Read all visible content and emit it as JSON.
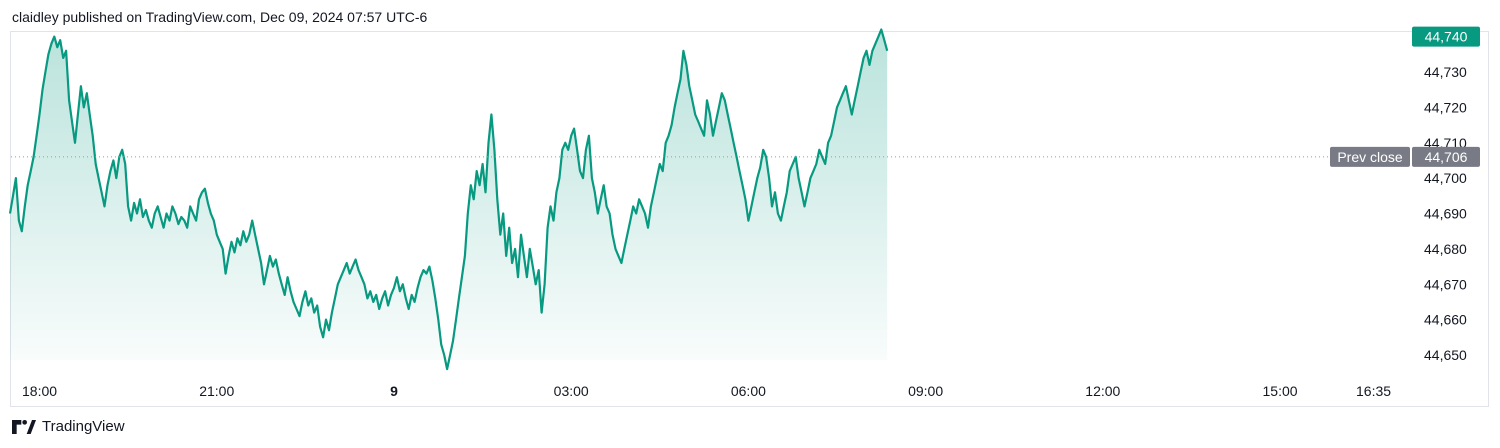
{
  "header": {
    "publish_line": "claidley published on TradingView.com, Dec 09, 2024 07:57 UTC-6"
  },
  "footer": {
    "brand": "TradingView",
    "logo_icon": "tradingview-logo-icon"
  },
  "colors": {
    "line": "#089981",
    "fill_top": "#089981",
    "prev_close_label_bg": "#787b86",
    "last_price_bg": "#089981",
    "grid_dots": "#9598a1"
  },
  "chart_data": {
    "type": "area",
    "title": "",
    "xlabel": "",
    "ylabel": "",
    "x_unit": "hours since 18:00 (Dec 8)",
    "x_ticks": [
      {
        "label": "18:00",
        "t": 0
      },
      {
        "label": "21:00",
        "t": 3
      },
      {
        "label": "9",
        "t": 6,
        "bold": true
      },
      {
        "label": "03:00",
        "t": 9
      },
      {
        "label": "06:00",
        "t": 12
      },
      {
        "label": "09:00",
        "t": 15
      },
      {
        "label": "12:00",
        "t": 18
      },
      {
        "label": "15:00",
        "t": 21
      },
      {
        "label": "16:35",
        "t": 22.583
      }
    ],
    "y_ticks": [
      44650,
      44660,
      44670,
      44680,
      44690,
      44700,
      44710,
      44720,
      44730
    ],
    "ylim": [
      44645,
      44742
    ],
    "xlim": [
      -0.5,
      23.2
    ],
    "prev_close": {
      "label": "Prev close",
      "value": 44706,
      "value_label": "44,706"
    },
    "last_price": {
      "value": 44740,
      "value_label": "44,740"
    },
    "series": [
      {
        "points": [
          [
            -0.5,
            44690
          ],
          [
            -0.45,
            44695
          ],
          [
            -0.4,
            44700
          ],
          [
            -0.35,
            44688
          ],
          [
            -0.3,
            44685
          ],
          [
            -0.25,
            44692
          ],
          [
            -0.2,
            44698
          ],
          [
            -0.15,
            44702
          ],
          [
            -0.1,
            44706
          ],
          [
            -0.05,
            44712
          ],
          [
            0.0,
            44718
          ],
          [
            0.05,
            44725
          ],
          [
            0.1,
            44730
          ],
          [
            0.15,
            44735
          ],
          [
            0.2,
            44738
          ],
          [
            0.25,
            44740
          ],
          [
            0.3,
            44737
          ],
          [
            0.35,
            44739
          ],
          [
            0.4,
            44734
          ],
          [
            0.45,
            44736
          ],
          [
            0.5,
            44722
          ],
          [
            0.55,
            44716
          ],
          [
            0.6,
            44710
          ],
          [
            0.65,
            44718
          ],
          [
            0.7,
            44726
          ],
          [
            0.75,
            44720
          ],
          [
            0.8,
            44724
          ],
          [
            0.85,
            44718
          ],
          [
            0.9,
            44712
          ],
          [
            0.95,
            44704
          ],
          [
            1.0,
            44700
          ],
          [
            1.05,
            44696
          ],
          [
            1.1,
            44692
          ],
          [
            1.15,
            44698
          ],
          [
            1.2,
            44702
          ],
          [
            1.25,
            44705
          ],
          [
            1.3,
            44700
          ],
          [
            1.35,
            44706
          ],
          [
            1.4,
            44708
          ],
          [
            1.45,
            44704
          ],
          [
            1.5,
            44692
          ],
          [
            1.55,
            44688
          ],
          [
            1.6,
            44693
          ],
          [
            1.65,
            44690
          ],
          [
            1.7,
            44694
          ],
          [
            1.75,
            44689
          ],
          [
            1.8,
            44691
          ],
          [
            1.85,
            44688
          ],
          [
            1.9,
            44686
          ],
          [
            1.95,
            44690
          ],
          [
            2.0,
            44692
          ],
          [
            2.05,
            44689
          ],
          [
            2.1,
            44686
          ],
          [
            2.15,
            44690
          ],
          [
            2.2,
            44688
          ],
          [
            2.25,
            44692
          ],
          [
            2.3,
            44690
          ],
          [
            2.35,
            44687
          ],
          [
            2.4,
            44689
          ],
          [
            2.45,
            44688
          ],
          [
            2.5,
            44686
          ],
          [
            2.55,
            44692
          ],
          [
            2.6,
            44690
          ],
          [
            2.65,
            44688
          ],
          [
            2.7,
            44694
          ],
          [
            2.75,
            44696
          ],
          [
            2.8,
            44697
          ],
          [
            2.85,
            44693
          ],
          [
            2.9,
            44690
          ],
          [
            2.95,
            44688
          ],
          [
            3.0,
            44684
          ],
          [
            3.05,
            44682
          ],
          [
            3.1,
            44680
          ],
          [
            3.15,
            44673
          ],
          [
            3.2,
            44678
          ],
          [
            3.25,
            44682
          ],
          [
            3.3,
            44679
          ],
          [
            3.35,
            44683
          ],
          [
            3.4,
            44681
          ],
          [
            3.45,
            44685
          ],
          [
            3.5,
            44682
          ],
          [
            3.55,
            44684
          ],
          [
            3.6,
            44688
          ],
          [
            3.65,
            44684
          ],
          [
            3.7,
            44680
          ],
          [
            3.75,
            44676
          ],
          [
            3.8,
            44670
          ],
          [
            3.85,
            44674
          ],
          [
            3.9,
            44678
          ],
          [
            3.95,
            44675
          ],
          [
            4.0,
            44677
          ],
          [
            4.05,
            44673
          ],
          [
            4.1,
            44670
          ],
          [
            4.15,
            44667
          ],
          [
            4.2,
            44672
          ],
          [
            4.25,
            44668
          ],
          [
            4.3,
            44665
          ],
          [
            4.35,
            44663
          ],
          [
            4.4,
            44661
          ],
          [
            4.45,
            44665
          ],
          [
            4.5,
            44668
          ],
          [
            4.55,
            44664
          ],
          [
            4.6,
            44666
          ],
          [
            4.65,
            44662
          ],
          [
            4.7,
            44664
          ],
          [
            4.75,
            44658
          ],
          [
            4.8,
            44655
          ],
          [
            4.85,
            44660
          ],
          [
            4.9,
            44657
          ],
          [
            4.95,
            44662
          ],
          [
            5.0,
            44666
          ],
          [
            5.05,
            44670
          ],
          [
            5.1,
            44672
          ],
          [
            5.15,
            44674
          ],
          [
            5.2,
            44676
          ],
          [
            5.25,
            44673
          ],
          [
            5.3,
            44675
          ],
          [
            5.35,
            44677
          ],
          [
            5.4,
            44674
          ],
          [
            5.45,
            44672
          ],
          [
            5.5,
            44670
          ],
          [
            5.55,
            44666
          ],
          [
            5.6,
            44668
          ],
          [
            5.65,
            44665
          ],
          [
            5.7,
            44667
          ],
          [
            5.75,
            44663
          ],
          [
            5.8,
            44666
          ],
          [
            5.85,
            44668
          ],
          [
            5.9,
            44664
          ],
          [
            5.95,
            44667
          ],
          [
            6.0,
            44669
          ],
          [
            6.05,
            44672
          ],
          [
            6.1,
            44668
          ],
          [
            6.15,
            44670
          ],
          [
            6.2,
            44666
          ],
          [
            6.25,
            44663
          ],
          [
            6.3,
            44667
          ],
          [
            6.35,
            44665
          ],
          [
            6.4,
            44669
          ],
          [
            6.45,
            44672
          ],
          [
            6.5,
            44674
          ],
          [
            6.55,
            44673
          ],
          [
            6.6,
            44675
          ],
          [
            6.65,
            44671
          ],
          [
            6.7,
            44666
          ],
          [
            6.75,
            44660
          ],
          [
            6.8,
            44653
          ],
          [
            6.85,
            44650
          ],
          [
            6.9,
            44646
          ],
          [
            6.95,
            44650
          ],
          [
            7.0,
            44654
          ],
          [
            7.05,
            44660
          ],
          [
            7.1,
            44666
          ],
          [
            7.15,
            44672
          ],
          [
            7.2,
            44678
          ],
          [
            7.25,
            44690
          ],
          [
            7.3,
            44698
          ],
          [
            7.35,
            44694
          ],
          [
            7.4,
            44702
          ],
          [
            7.45,
            44698
          ],
          [
            7.5,
            44704
          ],
          [
            7.55,
            44696
          ],
          [
            7.6,
            44710
          ],
          [
            7.65,
            44718
          ],
          [
            7.7,
            44708
          ],
          [
            7.75,
            44694
          ],
          [
            7.8,
            44684
          ],
          [
            7.85,
            44690
          ],
          [
            7.9,
            44678
          ],
          [
            7.95,
            44686
          ],
          [
            8.0,
            44676
          ],
          [
            8.05,
            44680
          ],
          [
            8.1,
            44672
          ],
          [
            8.15,
            44684
          ],
          [
            8.2,
            44678
          ],
          [
            8.25,
            44672
          ],
          [
            8.3,
            44680
          ],
          [
            8.35,
            44675
          ],
          [
            8.4,
            44670
          ],
          [
            8.45,
            44674
          ],
          [
            8.5,
            44662
          ],
          [
            8.55,
            44670
          ],
          [
            8.6,
            44686
          ],
          [
            8.65,
            44692
          ],
          [
            8.7,
            44688
          ],
          [
            8.75,
            44696
          ],
          [
            8.8,
            44700
          ],
          [
            8.85,
            44708
          ],
          [
            8.9,
            44710
          ],
          [
            8.95,
            44708
          ],
          [
            9.0,
            44712
          ],
          [
            9.05,
            44714
          ],
          [
            9.1,
            44708
          ],
          [
            9.15,
            44702
          ],
          [
            9.2,
            44700
          ],
          [
            9.25,
            44708
          ],
          [
            9.3,
            44712
          ],
          [
            9.35,
            44700
          ],
          [
            9.4,
            44696
          ],
          [
            9.45,
            44690
          ],
          [
            9.5,
            44694
          ],
          [
            9.55,
            44698
          ],
          [
            9.6,
            44692
          ],
          [
            9.65,
            44690
          ],
          [
            9.7,
            44684
          ],
          [
            9.75,
            44680
          ],
          [
            9.8,
            44678
          ],
          [
            9.85,
            44676
          ],
          [
            9.9,
            44680
          ],
          [
            9.95,
            44684
          ],
          [
            10.0,
            44688
          ],
          [
            10.05,
            44692
          ],
          [
            10.1,
            44690
          ],
          [
            10.15,
            44694
          ],
          [
            10.2,
            44692
          ],
          [
            10.25,
            44690
          ],
          [
            10.3,
            44686
          ],
          [
            10.35,
            44692
          ],
          [
            10.4,
            44696
          ],
          [
            10.45,
            44700
          ],
          [
            10.5,
            44704
          ],
          [
            10.55,
            44702
          ],
          [
            10.6,
            44710
          ],
          [
            10.65,
            44712
          ],
          [
            10.7,
            44715
          ],
          [
            10.75,
            44720
          ],
          [
            10.8,
            44724
          ],
          [
            10.85,
            44728
          ],
          [
            10.9,
            44736
          ],
          [
            10.95,
            44732
          ],
          [
            11.0,
            44726
          ],
          [
            11.05,
            44722
          ],
          [
            11.1,
            44718
          ],
          [
            11.15,
            44716
          ],
          [
            11.2,
            44714
          ],
          [
            11.25,
            44712
          ],
          [
            11.3,
            44722
          ],
          [
            11.35,
            44718
          ],
          [
            11.4,
            44712
          ],
          [
            11.45,
            44716
          ],
          [
            11.5,
            44720
          ],
          [
            11.55,
            44724
          ],
          [
            11.6,
            44722
          ],
          [
            11.65,
            44718
          ],
          [
            11.7,
            44714
          ],
          [
            11.75,
            44710
          ],
          [
            11.8,
            44706
          ],
          [
            11.85,
            44702
          ],
          [
            11.9,
            44698
          ],
          [
            11.95,
            44694
          ],
          [
            12.0,
            44688
          ],
          [
            12.05,
            44692
          ],
          [
            12.1,
            44696
          ],
          [
            12.15,
            44700
          ],
          [
            12.2,
            44703
          ],
          [
            12.25,
            44708
          ],
          [
            12.3,
            44706
          ],
          [
            12.35,
            44700
          ],
          [
            12.4,
            44692
          ],
          [
            12.45,
            44696
          ],
          [
            12.5,
            44690
          ],
          [
            12.55,
            44688
          ],
          [
            12.6,
            44692
          ],
          [
            12.65,
            44696
          ],
          [
            12.7,
            44702
          ],
          [
            12.75,
            44704
          ],
          [
            12.8,
            44706
          ],
          [
            12.85,
            44700
          ],
          [
            12.9,
            44696
          ],
          [
            12.95,
            44692
          ],
          [
            13.0,
            44696
          ],
          [
            13.05,
            44700
          ],
          [
            13.1,
            44702
          ],
          [
            13.15,
            44704
          ],
          [
            13.2,
            44708
          ],
          [
            13.25,
            44706
          ],
          [
            13.3,
            44704
          ],
          [
            13.35,
            44710
          ],
          [
            13.4,
            44712
          ],
          [
            13.45,
            44716
          ],
          [
            13.5,
            44720
          ],
          [
            13.55,
            44722
          ],
          [
            13.6,
            44724
          ],
          [
            13.65,
            44726
          ],
          [
            13.7,
            44722
          ],
          [
            13.75,
            44718
          ],
          [
            13.8,
            44722
          ],
          [
            13.85,
            44726
          ],
          [
            13.9,
            44730
          ],
          [
            13.95,
            44734
          ],
          [
            14.0,
            44736
          ],
          [
            14.05,
            44732
          ],
          [
            14.1,
            44736
          ],
          [
            14.15,
            44738
          ],
          [
            14.2,
            44740
          ],
          [
            14.25,
            44742
          ],
          [
            14.3,
            44739
          ],
          [
            14.35,
            44736
          ]
        ]
      }
    ]
  }
}
